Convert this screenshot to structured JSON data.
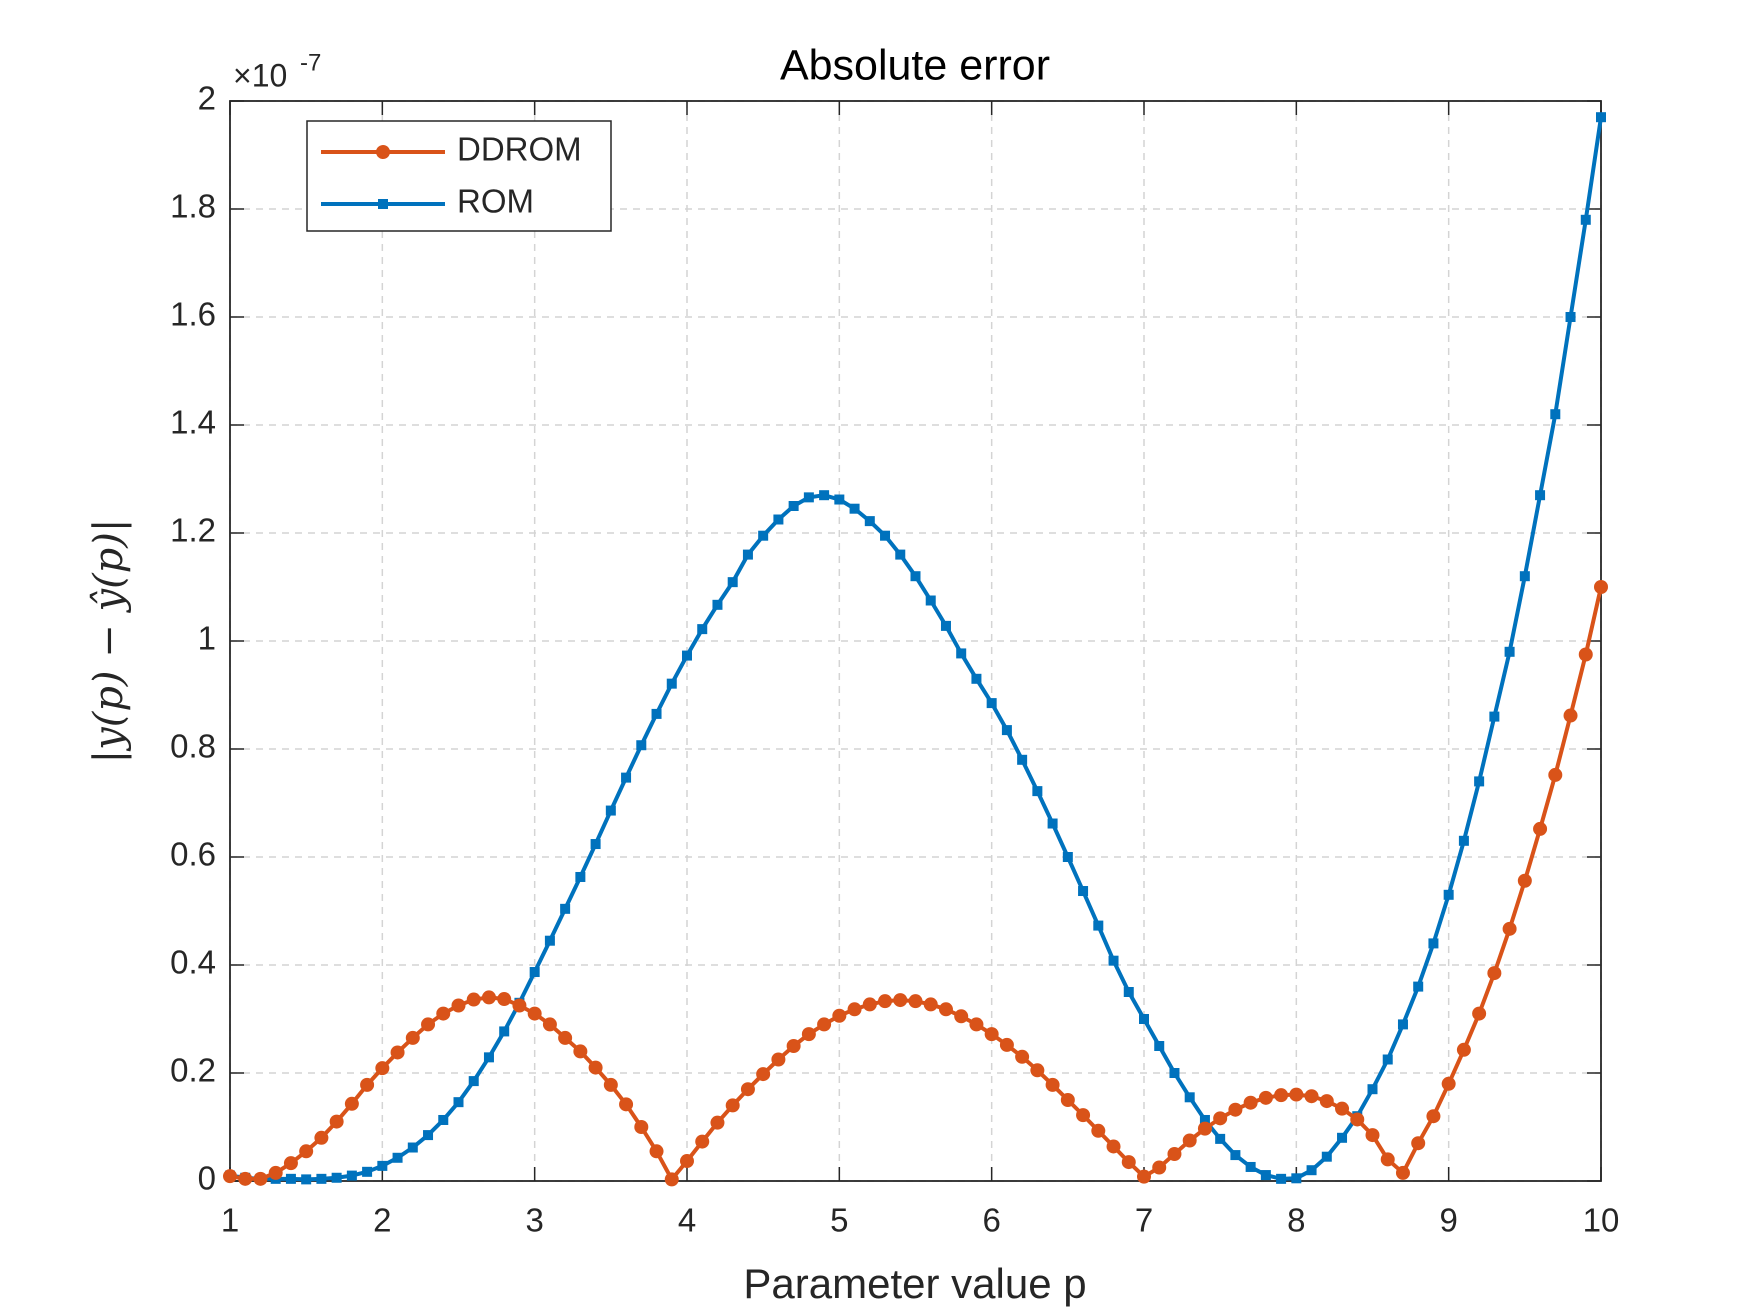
{
  "chart_data": {
    "type": "line",
    "title": "Absolute error",
    "xlabel": "Parameter value p",
    "ylabel": "|y(p) − ŷ(p)|",
    "y_multiplier": {
      "base": "×10",
      "exponent": "-7"
    },
    "x": [
      1,
      1.1,
      1.2,
      1.3,
      1.4,
      1.5,
      1.6,
      1.7,
      1.8,
      1.9,
      2,
      2.1,
      2.2,
      2.3,
      2.4,
      2.5,
      2.6,
      2.7,
      2.8,
      2.9,
      3,
      3.1,
      3.2,
      3.3,
      3.4,
      3.5,
      3.6,
      3.7,
      3.8,
      3.9,
      4,
      4.1,
      4.2,
      4.3,
      4.4,
      4.5,
      4.6,
      4.7,
      4.8,
      4.9,
      5,
      5.1,
      5.2,
      5.3,
      5.4,
      5.5,
      5.6,
      5.7,
      5.8,
      5.9,
      6,
      6.1,
      6.2,
      6.3,
      6.4,
      6.5,
      6.6,
      6.7,
      6.8,
      6.9,
      7,
      7.1,
      7.2,
      7.3,
      7.4,
      7.5,
      7.6,
      7.7,
      7.8,
      7.9,
      8,
      8.1,
      8.2,
      8.3,
      8.4,
      8.5,
      8.6,
      8.7,
      8.8,
      8.9,
      9,
      9.1,
      9.2,
      9.3,
      9.4,
      9.5,
      9.6,
      9.7,
      9.8,
      9.9,
      10
    ],
    "series": [
      {
        "name": "DDROM",
        "color": "#D95319",
        "marker": "circle",
        "values": [
          0.009,
          0.004,
          0.004,
          0.015,
          0.033,
          0.055,
          0.08,
          0.11,
          0.143,
          0.178,
          0.209,
          0.238,
          0.265,
          0.29,
          0.31,
          0.325,
          0.336,
          0.34,
          0.337,
          0.325,
          0.31,
          0.29,
          0.265,
          0.24,
          0.21,
          0.178,
          0.142,
          0.1,
          0.055,
          0.003,
          0.037,
          0.073,
          0.108,
          0.14,
          0.17,
          0.198,
          0.225,
          0.25,
          0.272,
          0.29,
          0.306,
          0.318,
          0.327,
          0.333,
          0.335,
          0.333,
          0.327,
          0.318,
          0.305,
          0.29,
          0.272,
          0.252,
          0.23,
          0.205,
          0.178,
          0.15,
          0.122,
          0.093,
          0.064,
          0.035,
          0.008,
          0.025,
          0.05,
          0.075,
          0.097,
          0.116,
          0.132,
          0.145,
          0.154,
          0.159,
          0.16,
          0.157,
          0.148,
          0.134,
          0.114,
          0.085,
          0.04,
          0.015,
          0.07,
          0.12,
          0.18,
          0.243,
          0.31,
          0.385,
          0.467,
          0.556,
          0.652,
          0.752,
          0.862,
          0.975,
          1.1
        ]
      },
      {
        "name": "ROM",
        "color": "#0072BD",
        "marker": "square",
        "values": [
          0.01,
          0.006,
          0.004,
          0.004,
          0.004,
          0.003,
          0.004,
          0.006,
          0.01,
          0.017,
          0.028,
          0.043,
          0.062,
          0.085,
          0.113,
          0.146,
          0.185,
          0.229,
          0.277,
          0.33,
          0.387,
          0.445,
          0.504,
          0.563,
          0.624,
          0.686,
          0.747,
          0.807,
          0.865,
          0.921,
          0.973,
          1.022,
          1.067,
          1.109,
          1.16,
          1.195,
          1.225,
          1.25,
          1.266,
          1.27,
          1.262,
          1.245,
          1.222,
          1.195,
          1.16,
          1.12,
          1.075,
          1.028,
          0.977,
          0.93,
          0.885,
          0.835,
          0.78,
          0.722,
          0.662,
          0.6,
          0.537,
          0.473,
          0.408,
          0.35,
          0.3,
          0.25,
          0.2,
          0.155,
          0.113,
          0.078,
          0.048,
          0.026,
          0.011,
          0.004,
          0.005,
          0.02,
          0.045,
          0.08,
          0.12,
          0.17,
          0.225,
          0.29,
          0.36,
          0.44,
          0.53,
          0.63,
          0.74,
          0.86,
          0.98,
          1.12,
          1.27,
          1.42,
          1.6,
          1.78,
          1.97
        ]
      }
    ],
    "xlim": [
      1,
      10
    ],
    "ylim": [
      0,
      2
    ],
    "xticks": [
      1,
      2,
      3,
      4,
      5,
      6,
      7,
      8,
      9,
      10
    ],
    "yticks": [
      0,
      0.2,
      0.4,
      0.6,
      0.8,
      1,
      1.2,
      1.4,
      1.6,
      1.8,
      2
    ],
    "grid": true,
    "legend": "upper left"
  }
}
